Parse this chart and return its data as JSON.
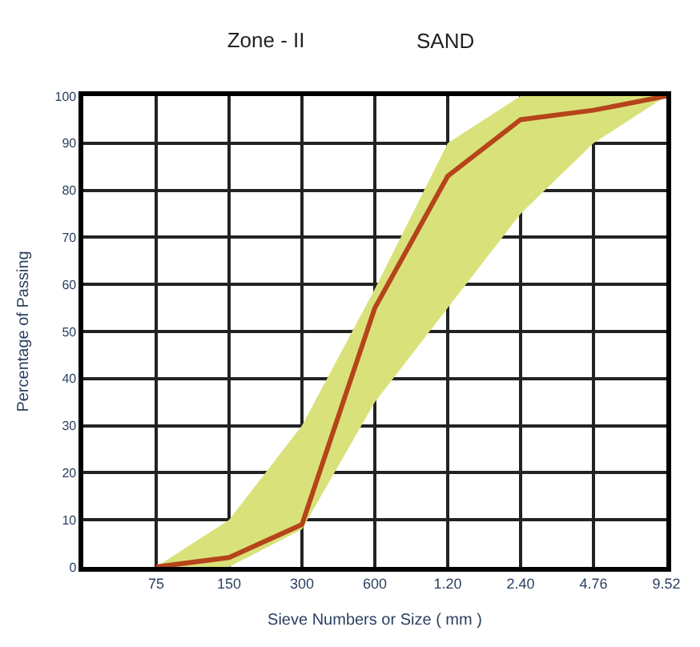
{
  "chart_data": {
    "type": "line",
    "title": "Zone - II",
    "subtitle": "SAND",
    "xlabel": "Sieve Numbers or Size ( mm )",
    "ylabel": "Percentage of Passing",
    "categories": [
      null,
      "75",
      "150",
      "300",
      "600",
      "1.20",
      "2.40",
      "4.76",
      "9.52"
    ],
    "series": [
      {
        "color": "#b5441a",
        "values": [
          null,
          0,
          2,
          9,
          55,
          83,
          95,
          97,
          100
        ],
        "lower": [
          null,
          0,
          0,
          8,
          35,
          55,
          75,
          90,
          100
        ],
        "upper": [
          null,
          0,
          10,
          30,
          59,
          90,
          100,
          100,
          100
        ]
      }
    ],
    "ylim": [
      0,
      100
    ],
    "yticks": [
      0,
      10,
      20,
      30,
      40,
      50,
      60,
      70,
      80,
      90,
      100
    ],
    "grid": true,
    "marker": "none",
    "line_style": "solid"
  }
}
